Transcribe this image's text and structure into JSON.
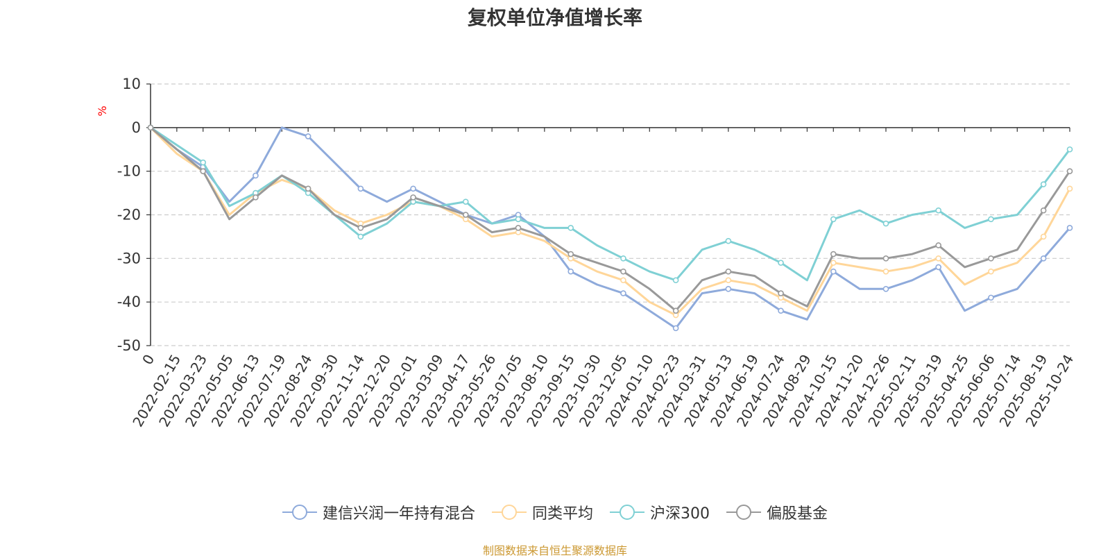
{
  "chart_data": {
    "type": "line",
    "title": "复权单位净值增长率",
    "ylabel": "%",
    "xlabel": "",
    "ylim": [
      -50,
      10
    ],
    "yticks": [
      10,
      0,
      -10,
      -20,
      -30,
      -40,
      -50
    ],
    "ytick_labels": [
      "10",
      "0",
      "-10",
      "-20",
      "-30",
      "-40",
      "-50"
    ],
    "grid": true,
    "legend_position": "bottom",
    "categories": [
      "0",
      "2022-02-15",
      "2022-03-23",
      "2022-05-05",
      "2022-06-13",
      "2022-07-19",
      "2022-08-24",
      "2022-09-30",
      "2022-11-14",
      "2022-12-20",
      "2023-02-01",
      "2023-03-09",
      "2023-04-17",
      "2023-05-26",
      "2023-07-05",
      "2023-08-10",
      "2023-09-15",
      "2023-10-30",
      "2023-12-05",
      "2024-01-10",
      "2024-02-23",
      "2024-03-31",
      "2024-05-13",
      "2024-06-19",
      "2024-07-24",
      "2024-08-29",
      "2024-10-15",
      "2024-11-20",
      "2024-12-26",
      "2025-02-11",
      "2025-03-19",
      "2025-04-25",
      "2025-06-06",
      "2025-07-14",
      "2025-08-19",
      "2025-10-24"
    ],
    "series": [
      {
        "name": "建信兴润一年持有混合",
        "color": "#8eaadb",
        "values": [
          0,
          -5,
          -9,
          -17,
          -11,
          0,
          -2,
          -8,
          -14,
          -17,
          -14,
          -17,
          -20,
          -22,
          -20,
          -25,
          -33,
          -36,
          -38,
          -42,
          -46,
          -38,
          -37,
          -38,
          -42,
          -44,
          -33,
          -37,
          -37,
          -35,
          -32,
          -42,
          -39,
          -37,
          -30,
          -23
        ]
      },
      {
        "name": "同类平均",
        "color": "#ffd699",
        "values": [
          0,
          -6,
          -10,
          -20,
          -15,
          -12,
          -14,
          -19,
          -22,
          -20,
          -17,
          -18,
          -21,
          -25,
          -24,
          -26,
          -30,
          -33,
          -35,
          -40,
          -43,
          -37,
          -35,
          -36,
          -39,
          -42,
          -31,
          -32,
          -33,
          -32,
          -30,
          -36,
          -33,
          -31,
          -25,
          -14
        ]
      },
      {
        "name": "沪深300",
        "color": "#7fd0d4",
        "values": [
          0,
          -4,
          -8,
          -18,
          -15,
          -11,
          -15,
          -20,
          -25,
          -22,
          -17,
          -18,
          -17,
          -22,
          -21,
          -23,
          -23,
          -27,
          -30,
          -33,
          -35,
          -28,
          -26,
          -28,
          -31,
          -35,
          -21,
          -19,
          -22,
          -20,
          -19,
          -23,
          -21,
          -20,
          -13,
          -5
        ]
      },
      {
        "name": "偏股基金",
        "color": "#999999",
        "values": [
          0,
          -5,
          -10,
          -21,
          -16,
          -11,
          -14,
          -20,
          -23,
          -21,
          -16,
          -18,
          -20,
          -24,
          -23,
          -25,
          -29,
          -31,
          -33,
          -37,
          -42,
          -35,
          -33,
          -34,
          -38,
          -41,
          -29,
          -30,
          -30,
          -29,
          -27,
          -32,
          -30,
          -28,
          -19,
          -10
        ]
      }
    ]
  },
  "source_note": "制图数据来自恒生聚源数据库"
}
